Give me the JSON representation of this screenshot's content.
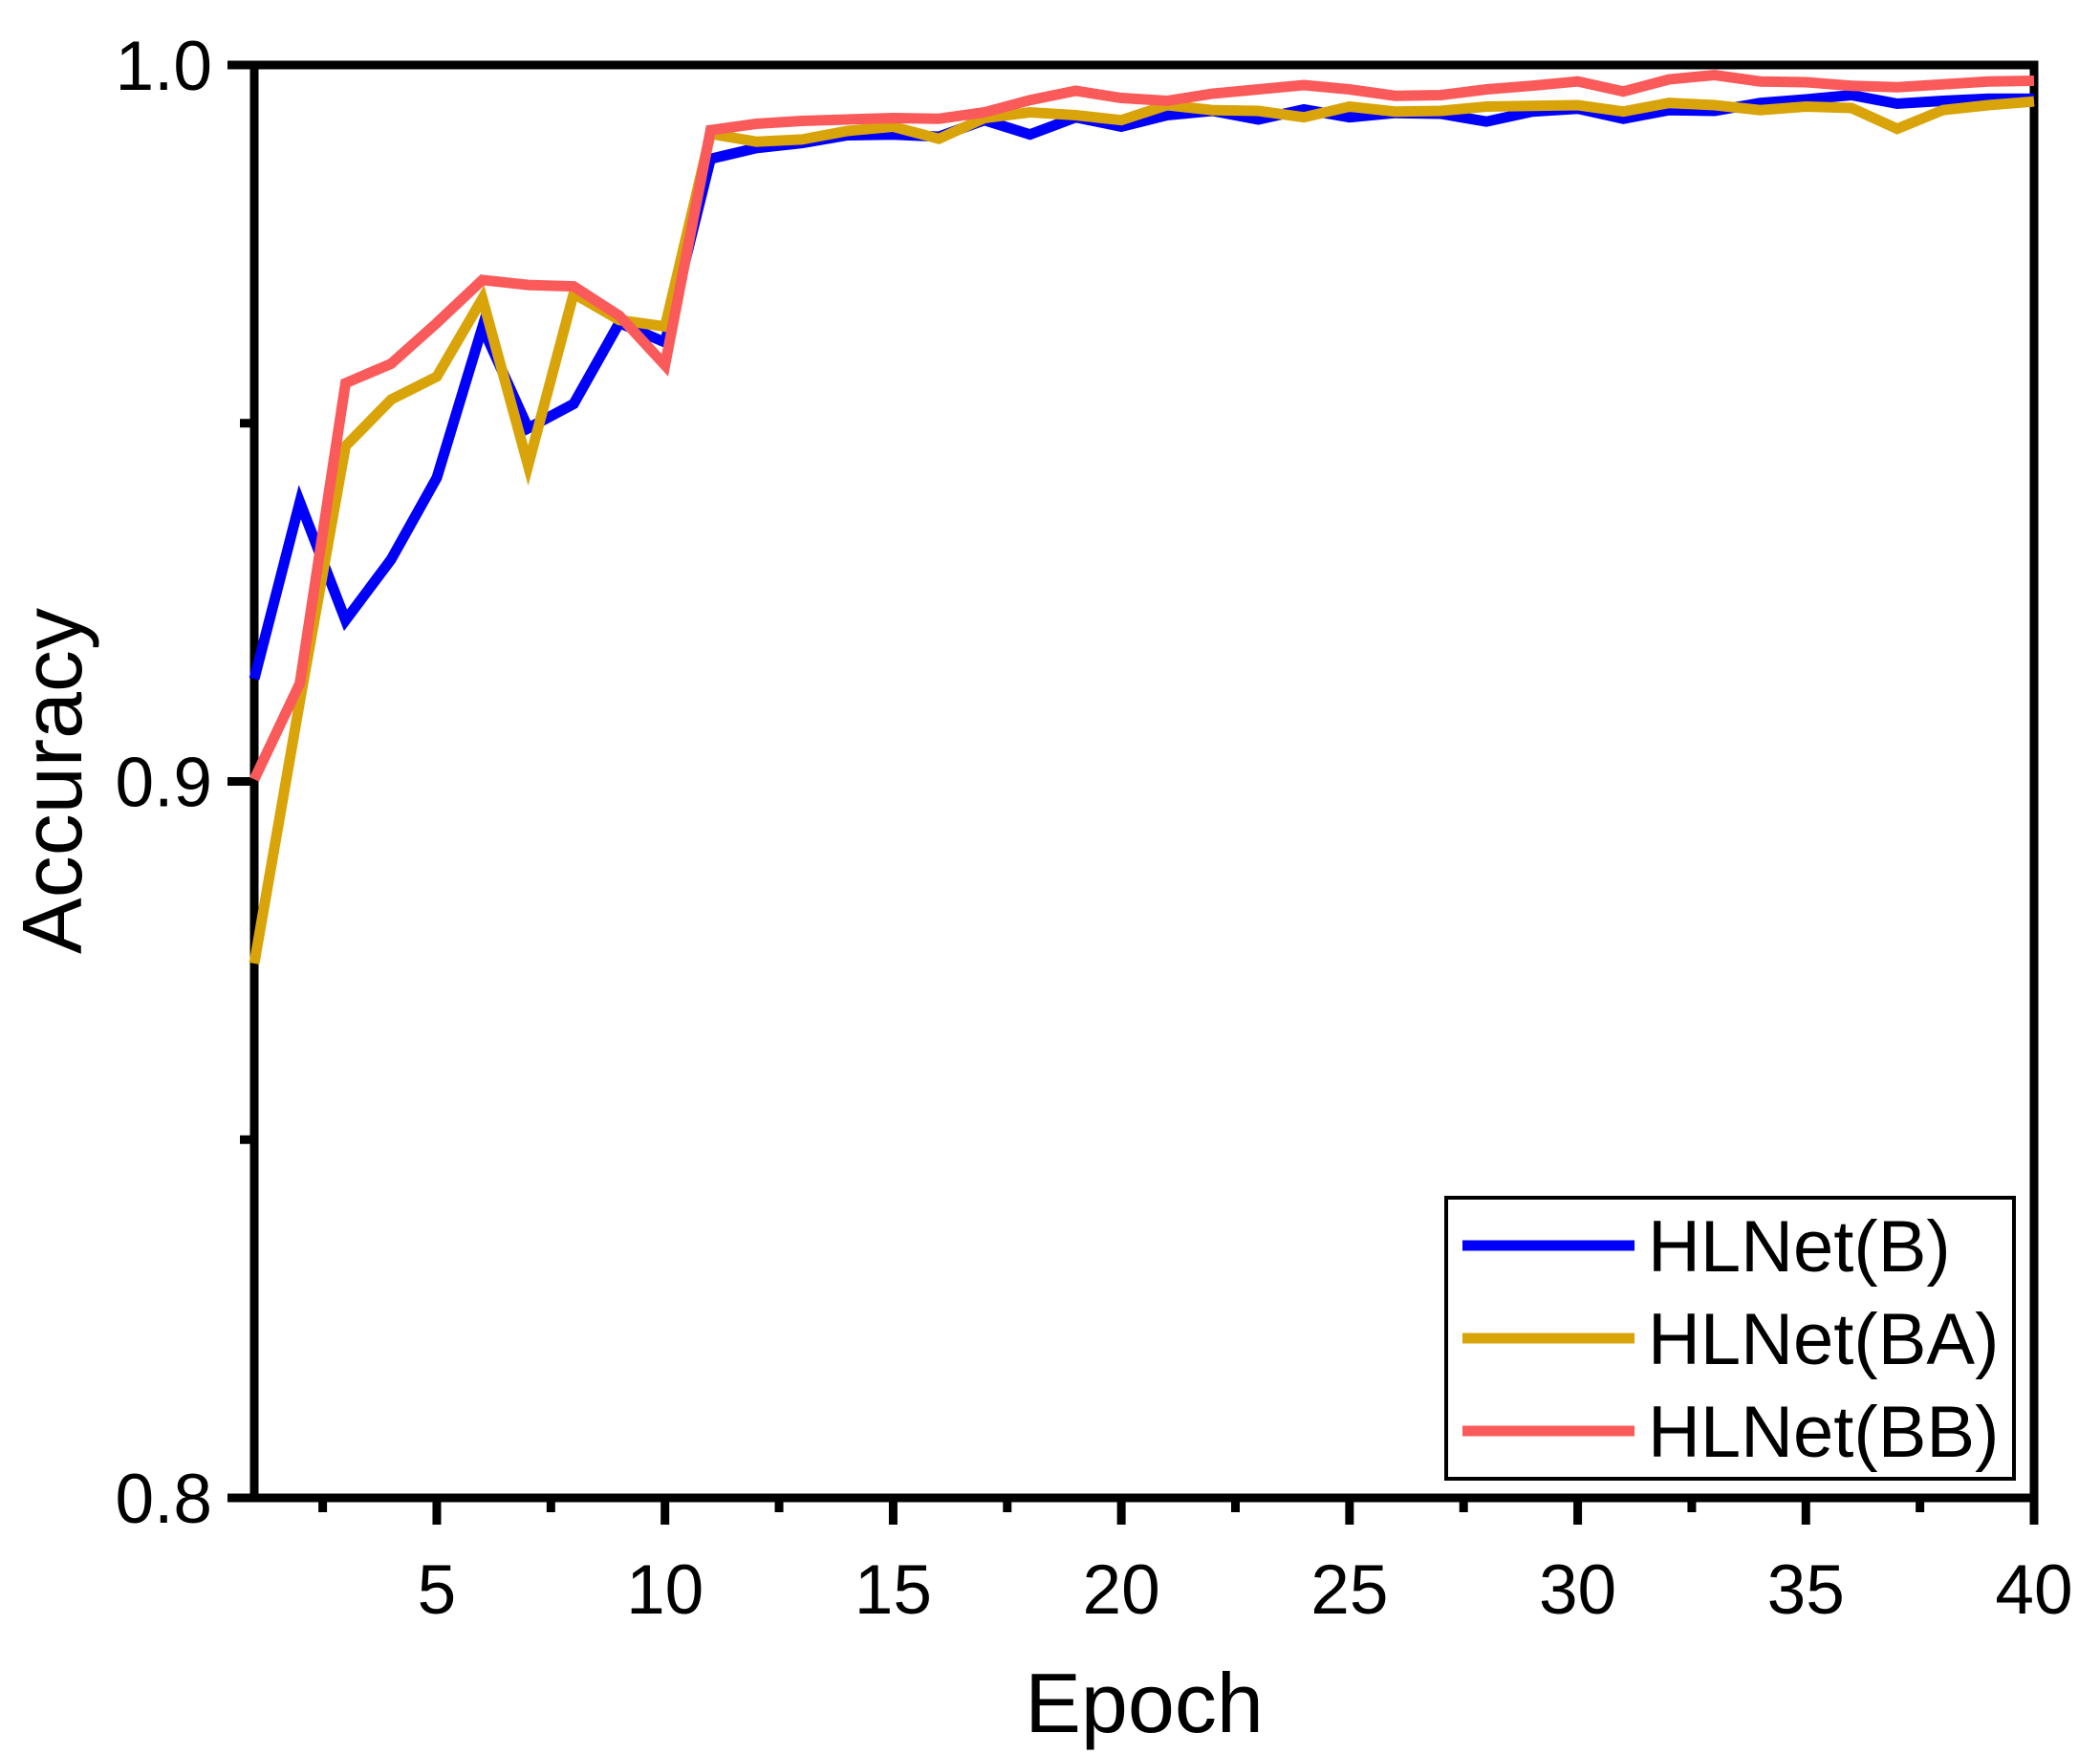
{
  "chart_data": {
    "type": "line",
    "title": "",
    "xlabel": "Epoch",
    "ylabel": "Accuracy",
    "xlim": [
      1,
      40
    ],
    "ylim": [
      0.8,
      1.0
    ],
    "grid": false,
    "legend_position": "bottom-right",
    "axis_color": "#000000",
    "x_major_ticks": [
      {
        "value": 5,
        "label": "5"
      },
      {
        "value": 10,
        "label": "10"
      },
      {
        "value": 15,
        "label": "15"
      },
      {
        "value": 20,
        "label": "20"
      },
      {
        "value": 25,
        "label": "25"
      },
      {
        "value": 30,
        "label": "30"
      },
      {
        "value": 35,
        "label": "35"
      },
      {
        "value": 40,
        "label": "40"
      }
    ],
    "x_minor_ticks": [
      2.5,
      7.5,
      12.5,
      17.5,
      22.5,
      27.5,
      32.5,
      37.5
    ],
    "y_major_ticks": [
      {
        "value": 0.8,
        "label": "0.8"
      },
      {
        "value": 0.9,
        "label": "0.9"
      },
      {
        "value": 1.0,
        "label": "1.0"
      }
    ],
    "y_minor_ticks": [
      0.85,
      0.95
    ],
    "x": [
      1,
      2,
      3,
      4,
      5,
      6,
      7,
      8,
      9,
      10,
      11,
      12,
      13,
      14,
      15,
      16,
      17,
      18,
      19,
      20,
      21,
      22,
      23,
      24,
      25,
      26,
      27,
      28,
      29,
      30,
      31,
      32,
      33,
      34,
      35,
      36,
      37,
      38,
      39,
      40
    ],
    "series": [
      {
        "name": "HLNet(B)",
        "color": "#0000FA",
        "values": [
          0.9143,
          0.939,
          0.9225,
          0.931,
          0.9424,
          0.9634,
          0.9493,
          0.9527,
          0.964,
          0.9613,
          0.9869,
          0.9884,
          0.9891,
          0.9902,
          0.9903,
          0.99,
          0.9923,
          0.9903,
          0.9927,
          0.9914,
          0.993,
          0.9936,
          0.9924,
          0.9938,
          0.9927,
          0.9933,
          0.9932,
          0.9921,
          0.9935,
          0.9939,
          0.9925,
          0.9937,
          0.9936,
          0.9947,
          0.9952,
          0.9958,
          0.9946,
          0.995,
          0.9953,
          0.9953
        ]
      },
      {
        "name": "HLNet(BA)",
        "color": "#D9A409",
        "values": [
          0.8746,
          0.9112,
          0.9468,
          0.9533,
          0.9565,
          0.9674,
          0.9441,
          0.9681,
          0.9644,
          0.9635,
          0.9904,
          0.9893,
          0.9896,
          0.9908,
          0.9914,
          0.9897,
          0.9926,
          0.9934,
          0.993,
          0.9923,
          0.9944,
          0.9937,
          0.9936,
          0.9927,
          0.9942,
          0.9935,
          0.9936,
          0.9942,
          0.9943,
          0.9944,
          0.9935,
          0.9947,
          0.9944,
          0.9937,
          0.9942,
          0.994,
          0.9911,
          0.9937,
          0.9944,
          0.9949
        ]
      },
      {
        "name": "HLNet(BB)",
        "color": "#FA5A59",
        "values": [
          0.9003,
          0.9137,
          0.9556,
          0.9583,
          0.964,
          0.97,
          0.9693,
          0.9691,
          0.965,
          0.9581,
          0.9909,
          0.9918,
          0.9922,
          0.9924,
          0.9926,
          0.9925,
          0.9934,
          0.9951,
          0.9964,
          0.9954,
          0.995,
          0.996,
          0.9966,
          0.9972,
          0.9966,
          0.9957,
          0.9958,
          0.9966,
          0.9971,
          0.9977,
          0.9963,
          0.998,
          0.9986,
          0.9977,
          0.9976,
          0.9971,
          0.9969,
          0.9973,
          0.9977,
          0.9978
        ]
      }
    ]
  }
}
